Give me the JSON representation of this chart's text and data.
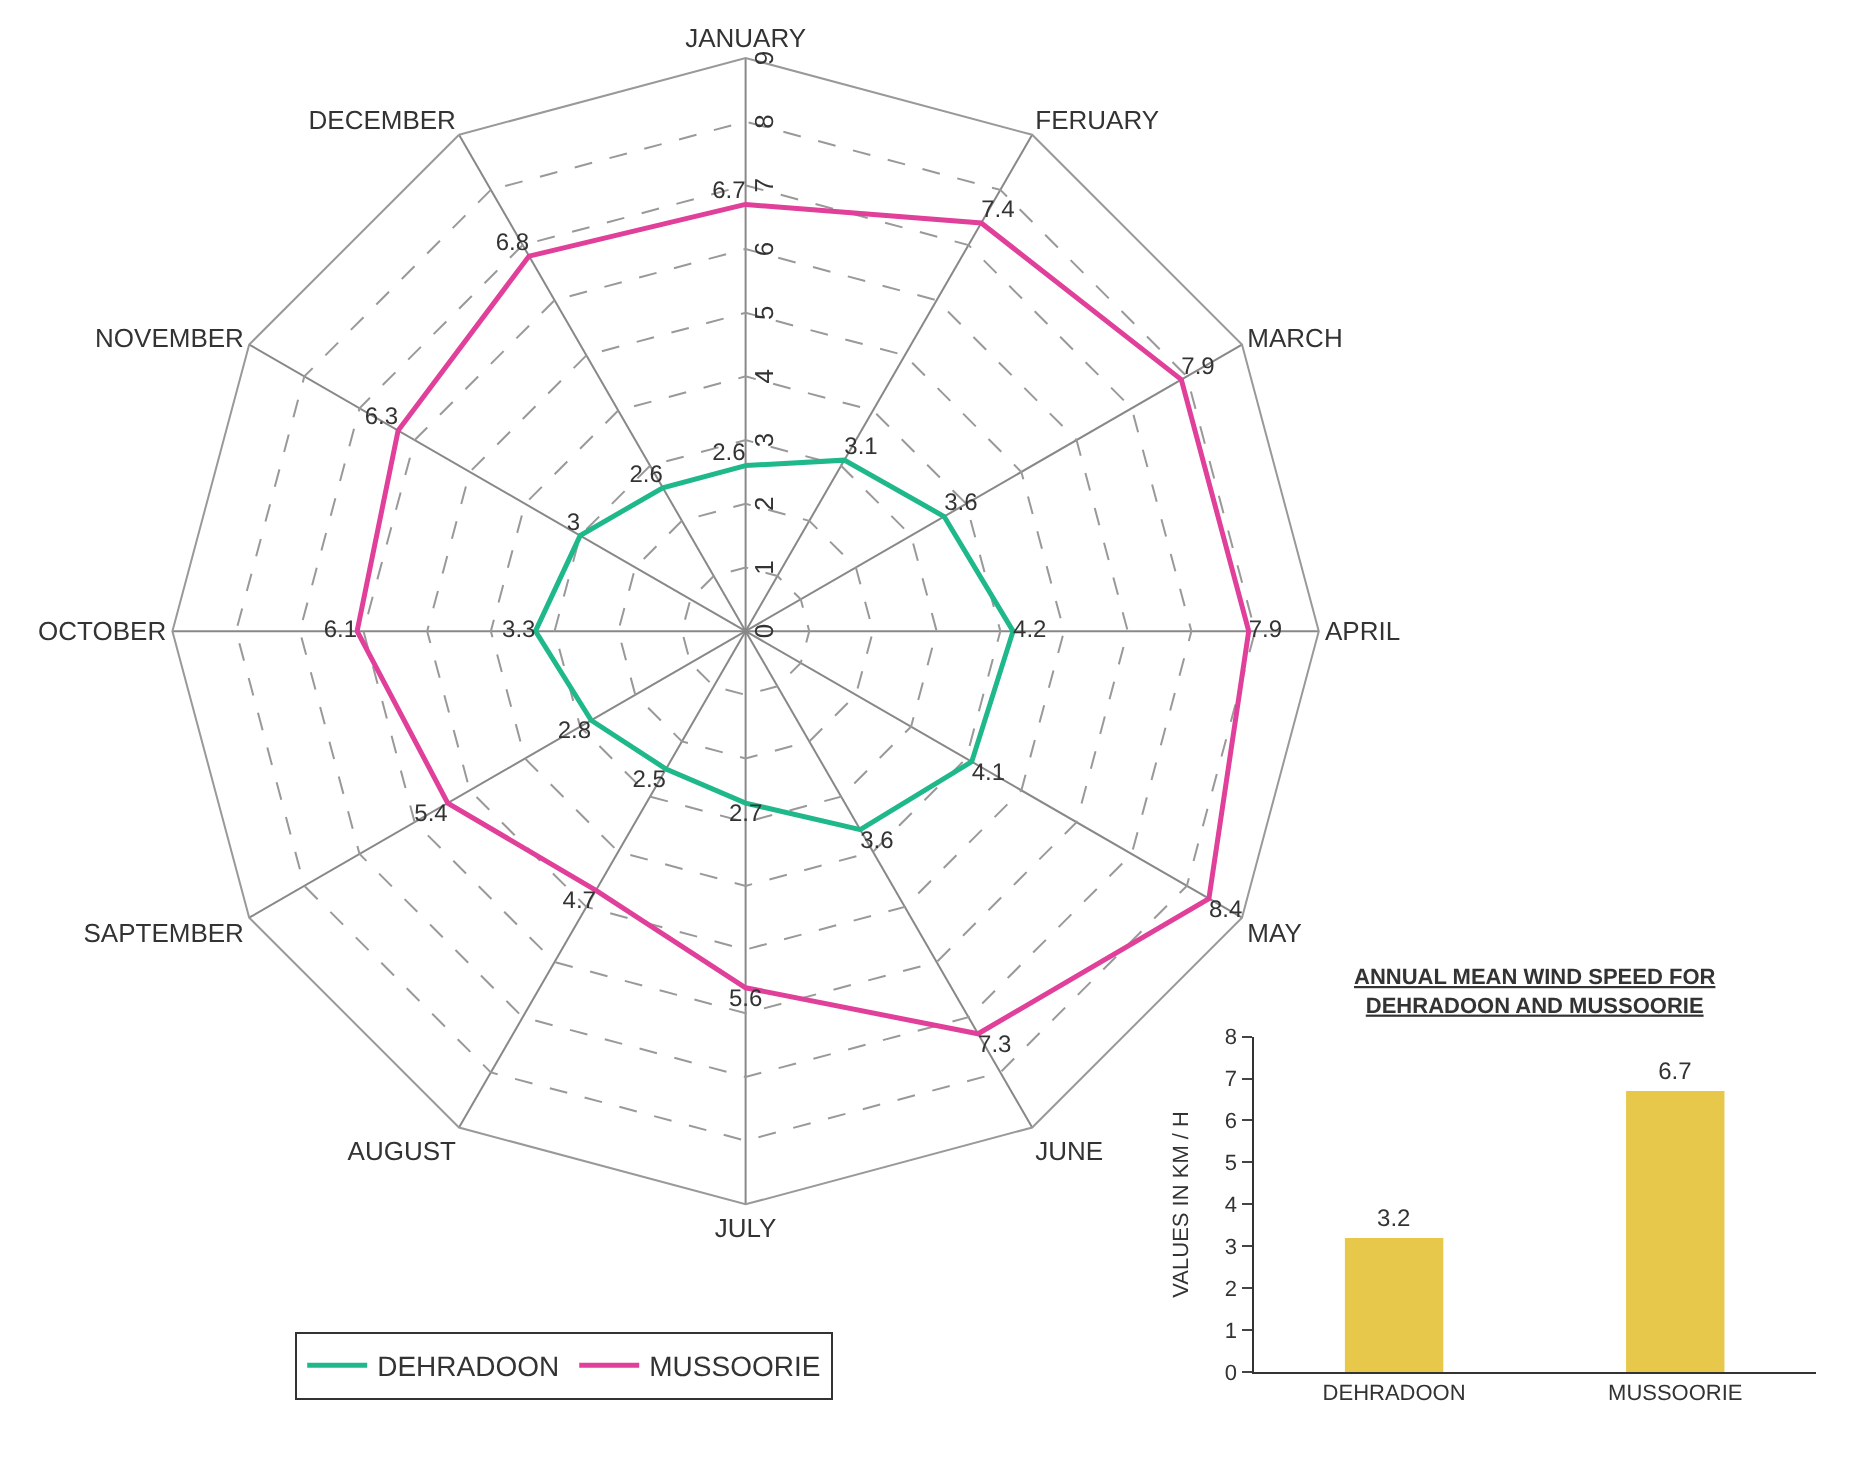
{
  "chart_data": [
    {
      "type": "radar",
      "categories": [
        "JANUARY",
        "FERUARY",
        "MARCH",
        "APRIL",
        "MAY",
        "JUNE",
        "JULY",
        "AUGUST",
        "SAPTEMBER",
        "OCTOBER",
        "NOVEMBER",
        "DECEMBER"
      ],
      "series": [
        {
          "name": "DEHRADOON",
          "color": "#1fb88a",
          "values": [
            2.6,
            3.1,
            3.6,
            4.2,
            4.1,
            3.6,
            2.7,
            2.5,
            2.8,
            3.3,
            3,
            2.6
          ]
        },
        {
          "name": "MUSSOORIE",
          "color": "#e0409a",
          "values": [
            6.7,
            7.4,
            7.9,
            7.9,
            8.4,
            7.3,
            5.6,
            4.7,
            5.4,
            6.1,
            6.3,
            6.8
          ]
        }
      ],
      "ylim": [
        0,
        9
      ],
      "yticks": [
        0,
        1,
        2,
        3,
        4,
        5,
        6,
        7,
        8,
        9
      ],
      "grid": true,
      "legend": "bottom",
      "data_labels": true,
      "line_style": "solid",
      "marker": "none"
    },
    {
      "type": "bar",
      "title": "ANNUAL MEAN WIND SPEED FOR DEHRADOON AND MUSSOORIE",
      "ylabel": "VALUES IN KM / H",
      "categories": [
        "DEHRADOON",
        "MUSSOORIE"
      ],
      "values": [
        3.2,
        6.7
      ],
      "color": "#e8c84a",
      "ylim": [
        0,
        8
      ],
      "yticks": [
        0,
        1,
        2,
        3,
        4,
        5,
        6,
        7,
        8
      ],
      "data_labels": true,
      "grid": false,
      "legend": false
    }
  ]
}
